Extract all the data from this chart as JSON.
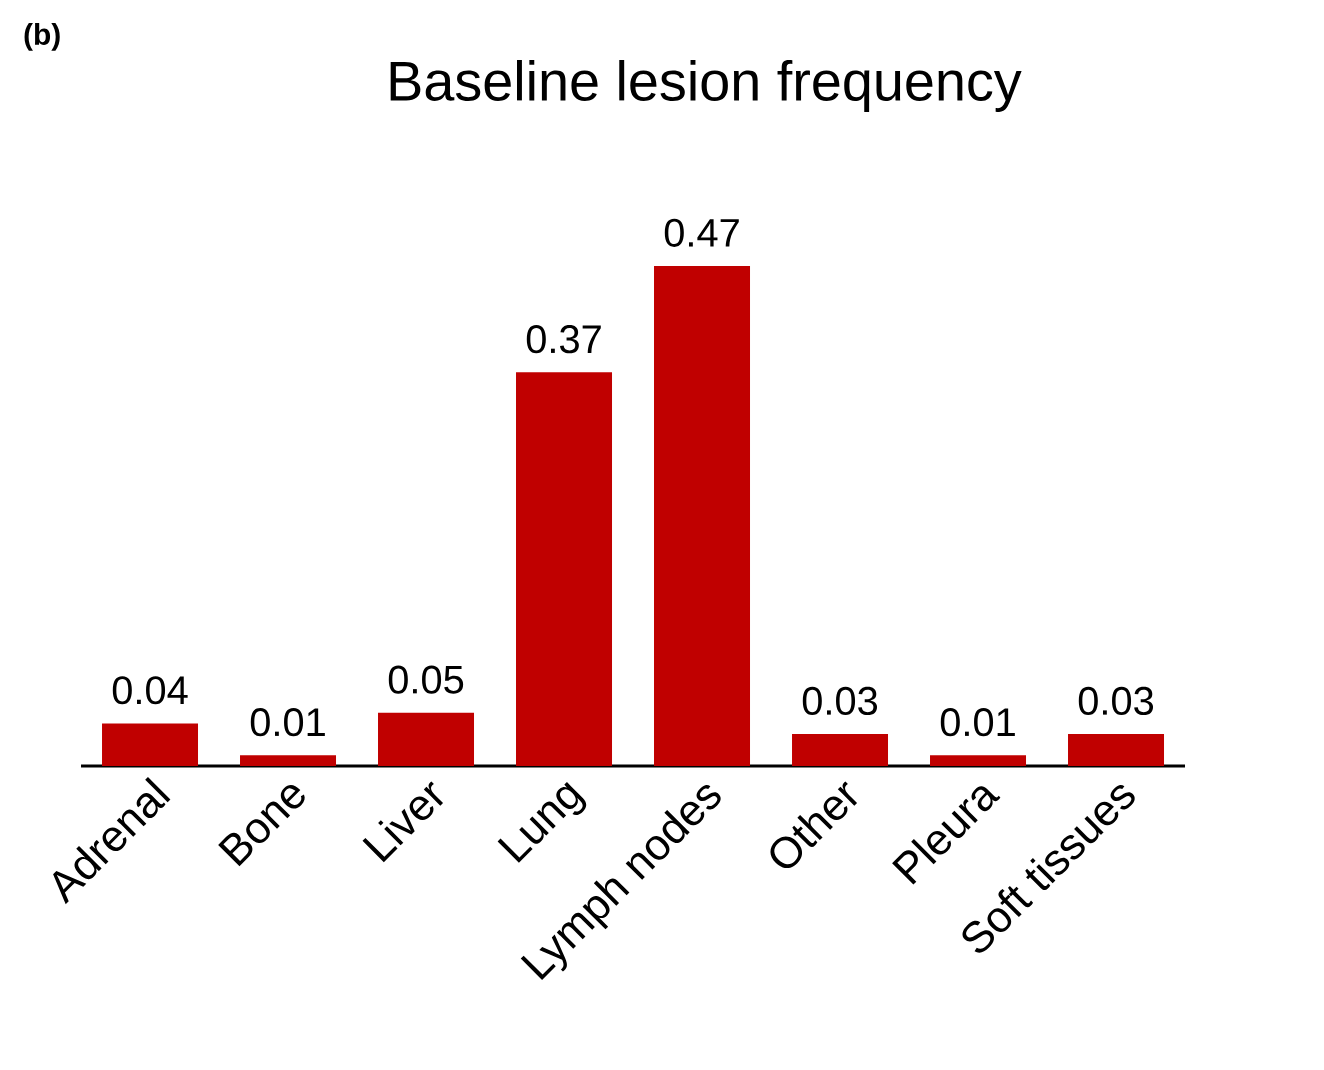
{
  "chart_data": {
    "type": "bar",
    "title": "Baseline lesion frequency",
    "annotations": [
      "**(b)**"
    ],
    "categories": [
      "Adrenal",
      "Bone",
      "Liver",
      "Lung",
      "Lymph nodes",
      "Other",
      "Pleura",
      "Soft tissues"
    ],
    "values": [
      0.04,
      0.01,
      0.05,
      0.37,
      0.47,
      0.03,
      0.01,
      0.03
    ],
    "color": "#c00000",
    "data_labels": true
  }
}
